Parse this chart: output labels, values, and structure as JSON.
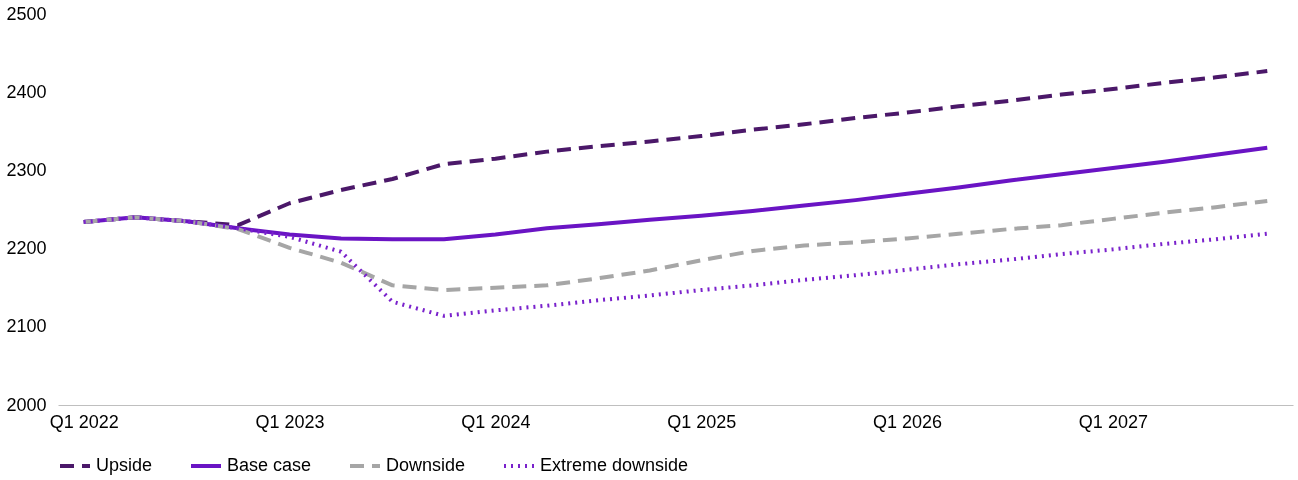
{
  "chart_data": {
    "type": "line",
    "categories": [
      "Q1 2022",
      null,
      null,
      null,
      "Q1 2023",
      null,
      null,
      null,
      "Q1 2024",
      null,
      null,
      null,
      "Q1 2025",
      null,
      null,
      null,
      "Q1 2026",
      null,
      null,
      null,
      "Q1 2027",
      null,
      null,
      null
    ],
    "series": [
      {
        "name": "Upside",
        "color": "#4b1869",
        "line_style": "dashed",
        "values": [
          2234,
          2240,
          2235,
          2230,
          2258,
          2275,
          2289,
          2308,
          2315,
          2324,
          2331,
          2337,
          2344,
          2352,
          2359,
          2367,
          2374,
          2382,
          2389,
          2397,
          2404,
          2412,
          2419,
          2427
        ]
      },
      {
        "name": "Base case",
        "color": "#6a14c4",
        "line_style": "solid",
        "values": [
          2234,
          2240,
          2235,
          2226,
          2218,
          2213,
          2212,
          2212,
          2218,
          2226,
          2231,
          2237,
          2242,
          2248,
          2255,
          2262,
          2270,
          2278,
          2287,
          2295,
          2303,
          2311,
          2320,
          2329
        ]
      },
      {
        "name": "Downside",
        "color": "#a6a6a6",
        "line_style": "dashed",
        "values": [
          2234,
          2240,
          2235,
          2225,
          2201,
          2182,
          2153,
          2147,
          2150,
          2153,
          2162,
          2172,
          2185,
          2197,
          2204,
          2208,
          2213,
          2219,
          2225,
          2230,
          2238,
          2246,
          2253,
          2261
        ]
      },
      {
        "name": "Extreme downside",
        "color": "#7a22cc",
        "line_style": "dotted",
        "values": [
          2234,
          2240,
          2235,
          2226,
          2215,
          2196,
          2132,
          2114,
          2121,
          2127,
          2134,
          2140,
          2147,
          2153,
          2160,
          2166,
          2173,
          2180,
          2186,
          2193,
          2199,
          2206,
          2212,
          2219
        ]
      }
    ],
    "ylim": [
      2000,
      2500
    ],
    "yticks": [
      2000,
      2100,
      2200,
      2300,
      2400,
      2500
    ],
    "grid": false,
    "legend": "bottom"
  }
}
